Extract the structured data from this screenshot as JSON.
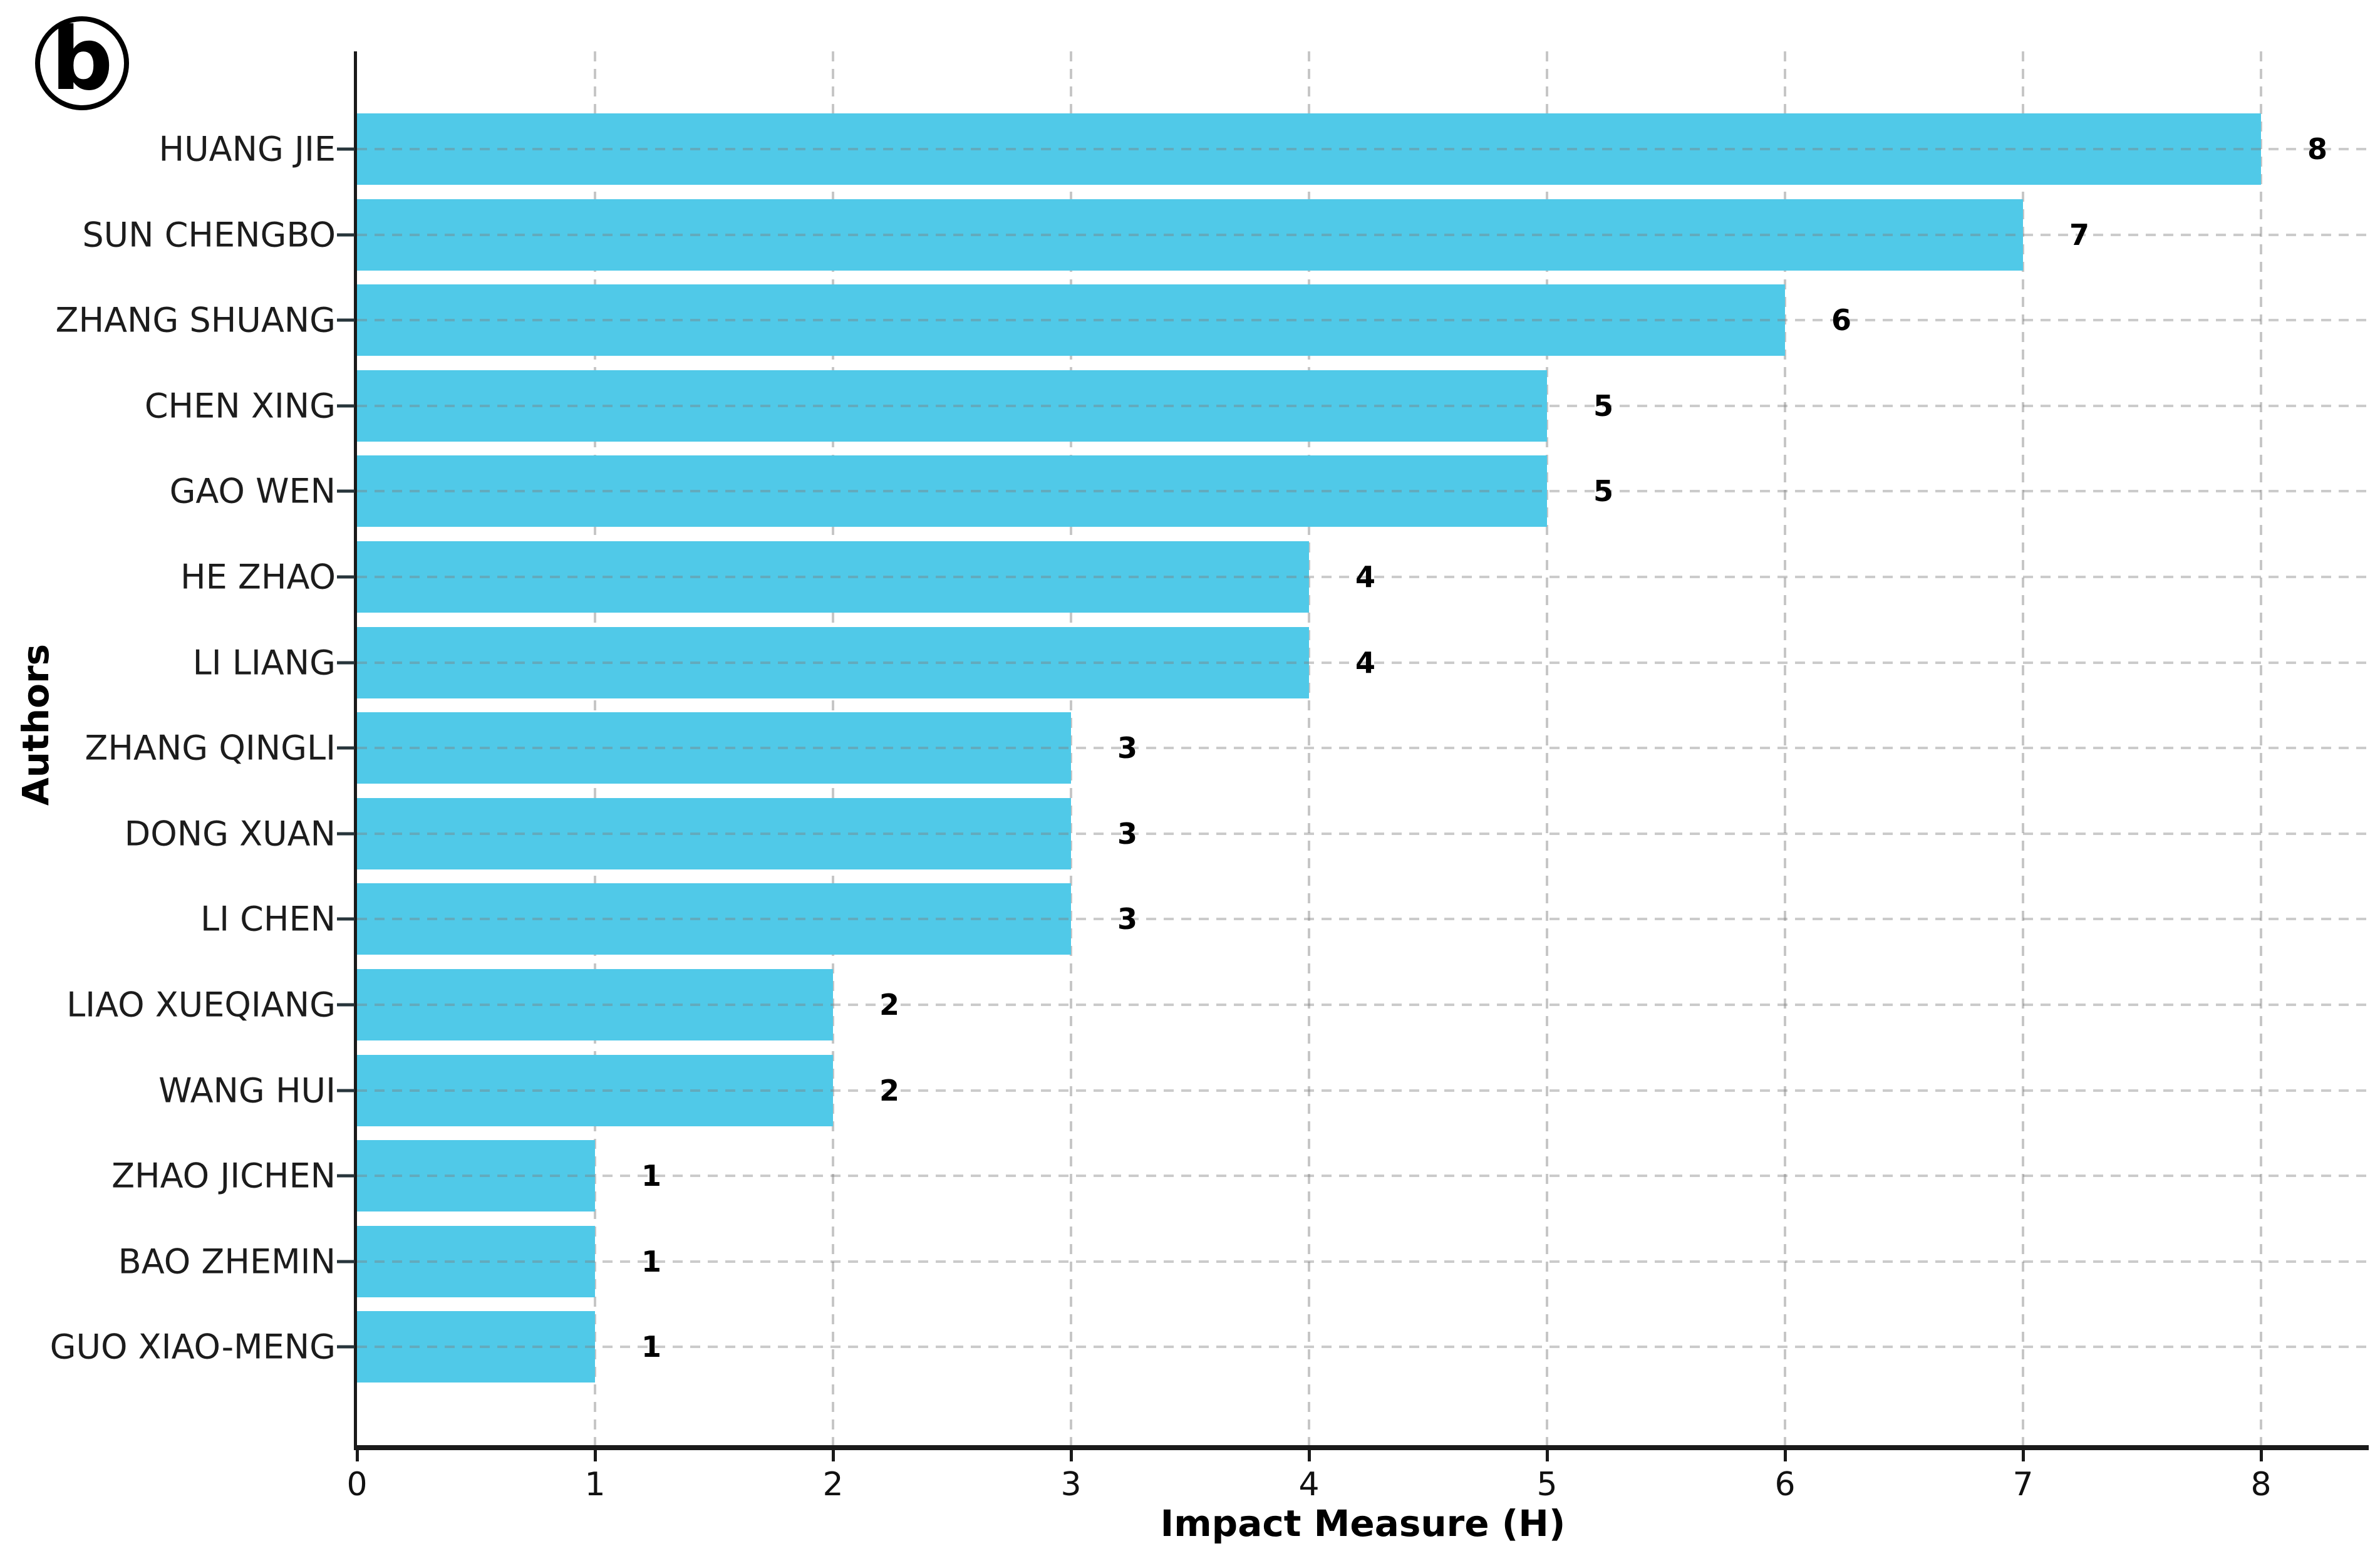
{
  "figure": {
    "panel_label": "b"
  },
  "chart_data": {
    "type": "bar",
    "orientation": "horizontal",
    "title": "",
    "xlabel": "Impact Measure (H)",
    "ylabel": "Authors",
    "categories": [
      "HUANG JIE",
      "SUN CHENGBO",
      "ZHANG SHUANG",
      "CHEN XING",
      "GAO WEN",
      "HE ZHAO",
      "LI LIANG",
      "ZHANG QINGLI",
      "DONG XUAN",
      "LI CHEN",
      "LIAO XUEQIANG",
      "WANG HUI",
      "ZHAO JICHEN",
      "BAO ZHEMIN",
      "GUO XIAO-MENG"
    ],
    "values": [
      8,
      7,
      6,
      5,
      5,
      4,
      4,
      3,
      3,
      3,
      2,
      2,
      1,
      1,
      1
    ],
    "value_labels": [
      "8",
      "7",
      "6",
      "5",
      "5",
      "4",
      "4",
      "3",
      "3",
      "3",
      "2",
      "2",
      "1",
      "1",
      "1"
    ],
    "x_ticks": [
      "0",
      "1",
      "2",
      "3",
      "4",
      "5",
      "6",
      "7",
      "8"
    ],
    "xlim": [
      0,
      8.45
    ],
    "grid": "dashed vertical and horizontal gridlines",
    "legend": "none",
    "bar_color": "#50c9e8",
    "gridline_color": "#c6c6c6",
    "axis_color": "#1a1a1a",
    "text_color": "#000000"
  }
}
